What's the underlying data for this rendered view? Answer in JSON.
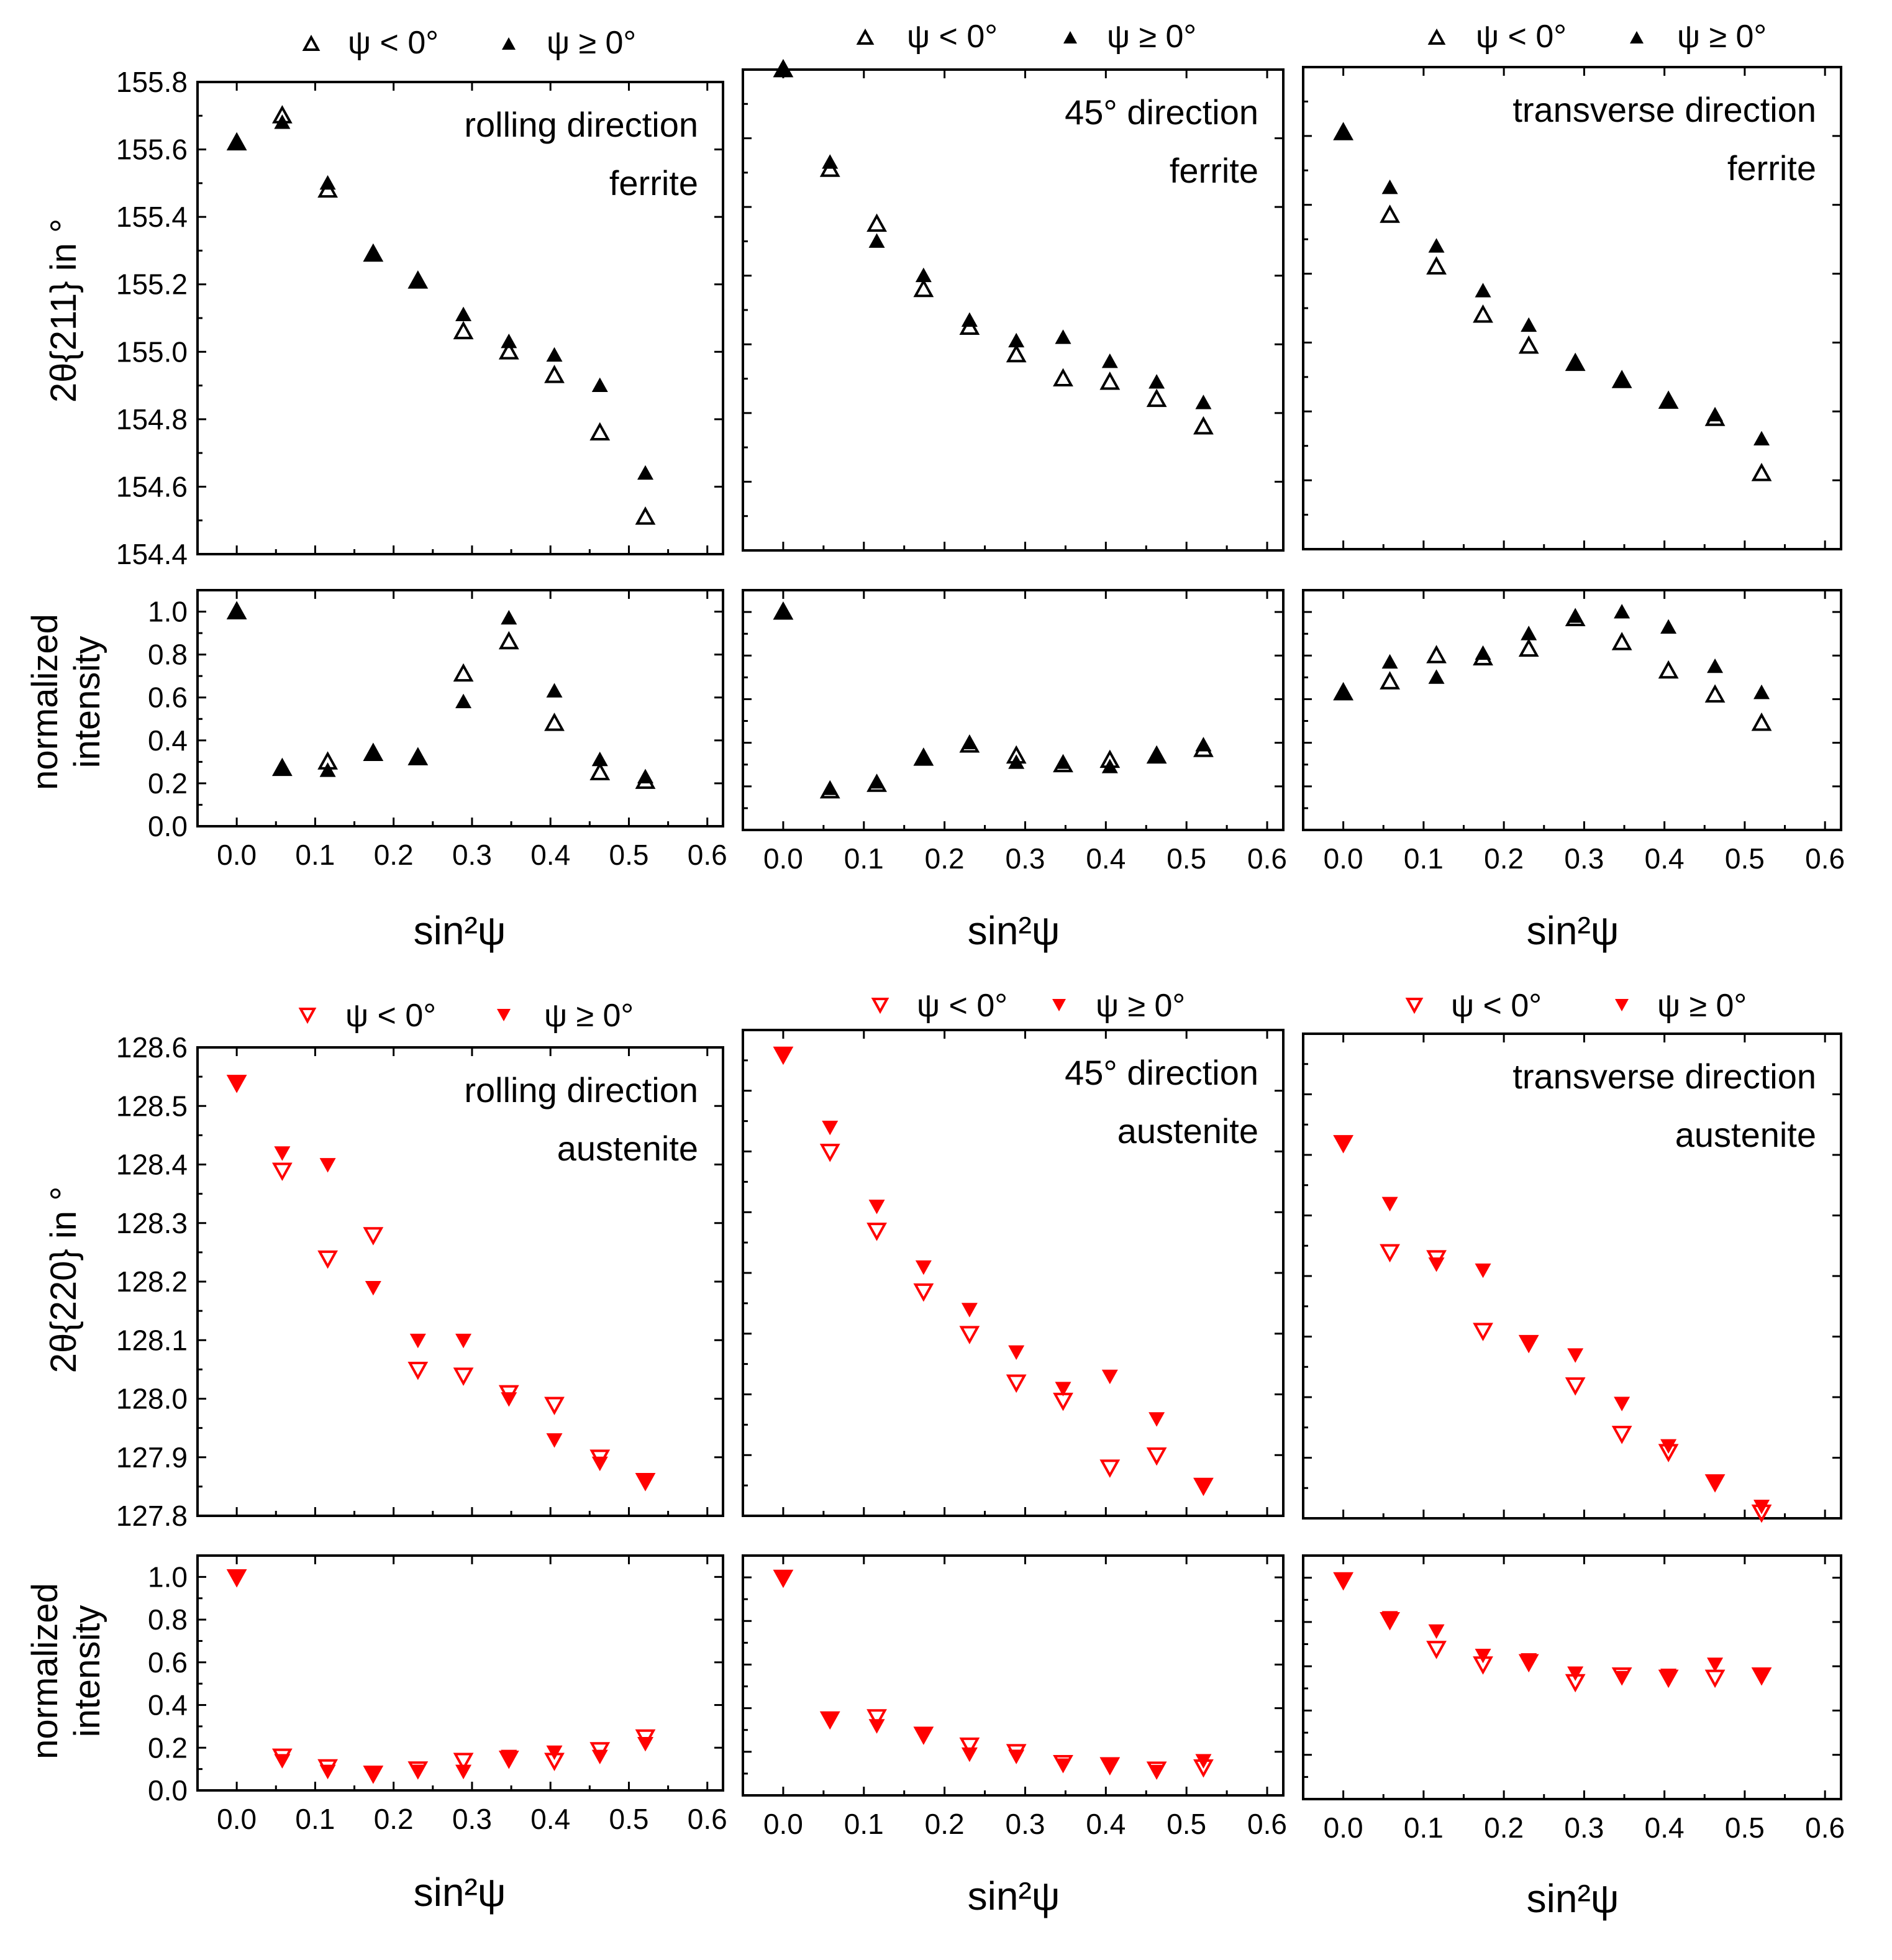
{
  "figure": {
    "legends": {
      "ferrite": {
        "neg": "ψ < 0°",
        "pos": "ψ ≥ 0°"
      },
      "austenite": {
        "neg": "ψ < 0°",
        "pos": "ψ ≥ 0°"
      }
    },
    "ylabels": {
      "ferrite_pos": "2θ{211} in °",
      "austenite_pos": "2θ{220} in °",
      "intensity_line1": "normalized",
      "intensity_line2": "intensity"
    },
    "xlabel": "sin²ψ",
    "colors": {
      "ferrite": "#000000",
      "austenite": "#ff0000"
    }
  },
  "chart_data": [
    {
      "id": "ferrite-rolling-pos",
      "type": "scatter",
      "phase": "ferrite",
      "kind": "position",
      "annotation": [
        "rolling direction",
        "ferrite"
      ],
      "ylim": [
        154.4,
        155.8
      ],
      "yticks": [
        "154.4",
        "154.6",
        "154.8",
        "155.0",
        "155.2",
        "155.4",
        "155.6",
        "155.8"
      ],
      "xlim": [
        -0.05,
        0.62
      ],
      "series": [
        {
          "name": "ψ < 0°",
          "x": [
            0.0,
            0.058,
            0.116,
            0.174,
            0.231,
            0.289,
            0.347,
            0.405,
            0.463,
            0.521
          ],
          "y": [
            155.62,
            155.7,
            155.48,
            155.29,
            155.21,
            155.06,
            155.0,
            154.93,
            154.76,
            154.51
          ]
        },
        {
          "name": "ψ ≥ 0°",
          "x": [
            0.0,
            0.058,
            0.116,
            0.174,
            0.231,
            0.289,
            0.347,
            0.405,
            0.463,
            0.521
          ],
          "y": [
            155.62,
            155.68,
            155.5,
            155.29,
            155.21,
            155.11,
            155.03,
            154.99,
            154.9,
            154.64
          ]
        }
      ]
    },
    {
      "id": "ferrite-45-pos",
      "type": "scatter",
      "phase": "ferrite",
      "kind": "position",
      "annotation": [
        "45° direction",
        "ferrite"
      ],
      "ylim": [
        154.4,
        155.8
      ],
      "yticks": [],
      "xlim": [
        -0.05,
        0.62
      ],
      "series": [
        {
          "name": "ψ < 0°",
          "x": [
            0.0,
            0.058,
            0.116,
            0.174,
            0.231,
            0.289,
            0.347,
            0.405,
            0.463,
            0.521
          ],
          "y": [
            155.8,
            155.51,
            155.35,
            155.16,
            155.05,
            154.97,
            154.9,
            154.89,
            154.84,
            154.76
          ]
        },
        {
          "name": "ψ ≥ 0°",
          "x": [
            0.0,
            0.058,
            0.116,
            0.174,
            0.231,
            0.289,
            0.347,
            0.405,
            0.463,
            0.521
          ],
          "y": [
            155.8,
            155.53,
            155.3,
            155.2,
            155.07,
            155.01,
            155.02,
            154.95,
            154.89,
            154.83
          ]
        }
      ]
    },
    {
      "id": "ferrite-transverse-pos",
      "type": "scatter",
      "phase": "ferrite",
      "kind": "position",
      "annotation": [
        "transverse direction",
        "ferrite"
      ],
      "ylim": [
        154.4,
        155.8
      ],
      "yticks": [],
      "xlim": [
        -0.05,
        0.62
      ],
      "series": [
        {
          "name": "ψ < 0°",
          "x": [
            0.0,
            0.058,
            0.116,
            0.174,
            0.231,
            0.289,
            0.347,
            0.405,
            0.463,
            0.521
          ],
          "y": [
            155.61,
            155.37,
            155.22,
            155.08,
            154.99,
            154.94,
            154.89,
            154.83,
            154.78,
            154.62
          ]
        },
        {
          "name": "ψ ≥ 0°",
          "x": [
            0.0,
            0.058,
            0.116,
            0.174,
            0.231,
            0.289,
            0.347,
            0.405,
            0.463,
            0.521
          ],
          "y": [
            155.61,
            155.45,
            155.28,
            155.15,
            155.05,
            154.94,
            154.89,
            154.83,
            154.79,
            154.72
          ]
        }
      ]
    },
    {
      "id": "ferrite-rolling-int",
      "type": "scatter",
      "phase": "ferrite",
      "kind": "intensity",
      "ylim": [
        0.0,
        1.1
      ],
      "yticks": [
        "0.0",
        "0.2",
        "0.4",
        "0.6",
        "0.8",
        "1.0"
      ],
      "xlim": [
        -0.05,
        0.62
      ],
      "xticks": [
        "0.0",
        "0.1",
        "0.2",
        "0.3",
        "0.4",
        "0.5",
        "0.6"
      ],
      "series": [
        {
          "name": "ψ < 0°",
          "x": [
            0.0,
            0.058,
            0.116,
            0.174,
            0.231,
            0.289,
            0.347,
            0.405,
            0.463,
            0.521
          ],
          "y": [
            1.0,
            0.27,
            0.3,
            0.34,
            0.32,
            0.71,
            0.86,
            0.48,
            0.25,
            0.21
          ]
        },
        {
          "name": "ψ ≥ 0°",
          "x": [
            0.0,
            0.058,
            0.116,
            0.174,
            0.231,
            0.289,
            0.347,
            0.405,
            0.463,
            0.521
          ],
          "y": [
            1.0,
            0.27,
            0.26,
            0.34,
            0.32,
            0.58,
            0.97,
            0.63,
            0.31,
            0.23
          ]
        }
      ]
    },
    {
      "id": "ferrite-45-int",
      "type": "scatter",
      "phase": "ferrite",
      "kind": "intensity",
      "ylim": [
        0.0,
        1.1
      ],
      "yticks": [],
      "xlim": [
        -0.05,
        0.62
      ],
      "xticks": [
        "0.0",
        "0.1",
        "0.2",
        "0.3",
        "0.4",
        "0.5",
        "0.6"
      ],
      "series": [
        {
          "name": "ψ < 0°",
          "x": [
            0.0,
            0.058,
            0.116,
            0.174,
            0.231,
            0.289,
            0.347,
            0.405,
            0.463,
            0.521
          ],
          "y": [
            1.0,
            0.18,
            0.21,
            0.33,
            0.39,
            0.34,
            0.3,
            0.32,
            0.34,
            0.37
          ]
        },
        {
          "name": "ψ ≥ 0°",
          "x": [
            0.0,
            0.058,
            0.116,
            0.174,
            0.231,
            0.289,
            0.347,
            0.405,
            0.463,
            0.521
          ],
          "y": [
            1.0,
            0.19,
            0.22,
            0.33,
            0.4,
            0.31,
            0.31,
            0.29,
            0.34,
            0.39
          ]
        }
      ]
    },
    {
      "id": "ferrite-transverse-int",
      "type": "scatter",
      "phase": "ferrite",
      "kind": "intensity",
      "ylim": [
        0.0,
        1.1
      ],
      "yticks": [],
      "xlim": [
        -0.05,
        0.62
      ],
      "xticks": [
        "0.0",
        "0.1",
        "0.2",
        "0.3",
        "0.4",
        "0.5",
        "0.6"
      ],
      "series": [
        {
          "name": "ψ < 0°",
          "x": [
            0.0,
            0.058,
            0.116,
            0.174,
            0.231,
            0.289,
            0.347,
            0.405,
            0.463,
            0.521
          ],
          "y": [
            0.63,
            0.68,
            0.8,
            0.79,
            0.83,
            0.97,
            0.86,
            0.73,
            0.62,
            0.49
          ]
        },
        {
          "name": "ψ ≥ 0°",
          "x": [
            0.0,
            0.058,
            0.116,
            0.174,
            0.231,
            0.289,
            0.347,
            0.405,
            0.463,
            0.521
          ],
          "y": [
            0.63,
            0.77,
            0.7,
            0.81,
            0.9,
            0.98,
            1.0,
            0.93,
            0.75,
            0.63
          ]
        }
      ]
    },
    {
      "id": "austenite-rolling-pos",
      "type": "scatter",
      "phase": "austenite",
      "kind": "position",
      "annotation": [
        "rolling direction",
        "austenite"
      ],
      "ylim": [
        127.8,
        128.6
      ],
      "yticks": [
        "127.8",
        "127.9",
        "128.0",
        "128.1",
        "128.2",
        "128.3",
        "128.4",
        "128.5",
        "128.6"
      ],
      "xlim": [
        -0.05,
        0.62
      ],
      "series": [
        {
          "name": "ψ < 0°",
          "x": [
            0.0,
            0.058,
            0.116,
            0.174,
            0.231,
            0.289,
            0.347,
            0.405,
            0.463,
            0.521
          ],
          "y": [
            128.54,
            128.39,
            128.24,
            128.28,
            128.05,
            128.04,
            128.01,
            127.99,
            127.9,
            127.86
          ]
        },
        {
          "name": "ψ ≥ 0°",
          "x": [
            0.0,
            0.058,
            0.116,
            0.174,
            0.231,
            0.289,
            0.347,
            0.405,
            0.463,
            0.521
          ],
          "y": [
            128.54,
            128.42,
            128.4,
            128.19,
            128.1,
            128.1,
            128.0,
            127.93,
            127.89,
            127.86
          ]
        }
      ]
    },
    {
      "id": "austenite-45-pos",
      "type": "scatter",
      "phase": "austenite",
      "kind": "position",
      "annotation": [
        "45° direction",
        "austenite"
      ],
      "ylim": [
        127.8,
        128.6
      ],
      "yticks": [],
      "xlim": [
        -0.05,
        0.62
      ],
      "series": [
        {
          "name": "ψ < 0°",
          "x": [
            0.0,
            0.058,
            0.116,
            0.174,
            0.231,
            0.289,
            0.347,
            0.405,
            0.463,
            0.521
          ],
          "y": [
            128.56,
            128.4,
            128.27,
            128.17,
            128.1,
            128.02,
            127.99,
            127.88,
            127.9,
            127.85
          ]
        },
        {
          "name": "ψ ≥ 0°",
          "x": [
            0.0,
            0.058,
            0.116,
            0.174,
            0.231,
            0.289,
            0.347,
            0.405,
            0.463,
            0.521
          ],
          "y": [
            128.56,
            128.44,
            128.31,
            128.21,
            128.14,
            128.07,
            128.01,
            128.03,
            127.96,
            127.85
          ]
        }
      ]
    },
    {
      "id": "austenite-transverse-pos",
      "type": "scatter",
      "phase": "austenite",
      "kind": "position",
      "annotation": [
        "transverse direction",
        "austenite"
      ],
      "ylim": [
        127.8,
        128.6
      ],
      "yticks": [],
      "xlim": [
        -0.05,
        0.62
      ],
      "series": [
        {
          "name": "ψ < 0°",
          "x": [
            0.0,
            0.058,
            0.116,
            0.174,
            0.231,
            0.289,
            0.347,
            0.405,
            0.463,
            0.521
          ],
          "y": [
            128.42,
            128.24,
            128.23,
            128.11,
            128.09,
            128.02,
            127.94,
            127.91,
            127.86,
            127.81
          ]
        },
        {
          "name": "ψ ≥ 0°",
          "x": [
            0.0,
            0.058,
            0.116,
            0.174,
            0.231,
            0.289,
            0.347,
            0.405,
            0.463,
            0.521
          ],
          "y": [
            128.42,
            128.32,
            128.22,
            128.21,
            128.09,
            128.07,
            127.99,
            127.92,
            127.86,
            127.82
          ]
        }
      ]
    },
    {
      "id": "austenite-rolling-int",
      "type": "scatter",
      "phase": "austenite",
      "kind": "intensity",
      "ylim": [
        0.0,
        1.1
      ],
      "yticks": [
        "0.0",
        "0.2",
        "0.4",
        "0.6",
        "0.8",
        "1.0"
      ],
      "xlim": [
        -0.05,
        0.62
      ],
      "xticks": [
        "0.0",
        "0.1",
        "0.2",
        "0.3",
        "0.4",
        "0.5",
        "0.6"
      ],
      "series": [
        {
          "name": "ψ < 0°",
          "x": [
            0.0,
            0.058,
            0.116,
            0.174,
            0.231,
            0.289,
            0.347,
            0.405,
            0.463,
            0.521
          ],
          "y": [
            1.0,
            0.16,
            0.11,
            0.08,
            0.1,
            0.14,
            0.15,
            0.14,
            0.19,
            0.25
          ]
        },
        {
          "name": "ψ ≥ 0°",
          "x": [
            0.0,
            0.058,
            0.116,
            0.174,
            0.231,
            0.289,
            0.347,
            0.405,
            0.463,
            0.521
          ],
          "y": [
            1.0,
            0.14,
            0.09,
            0.08,
            0.09,
            0.09,
            0.16,
            0.18,
            0.16,
            0.22
          ]
        }
      ]
    },
    {
      "id": "austenite-45-int",
      "type": "scatter",
      "phase": "austenite",
      "kind": "intensity",
      "ylim": [
        0.0,
        1.1
      ],
      "yticks": [],
      "xlim": [
        -0.05,
        0.62
      ],
      "xticks": [
        "0.0",
        "0.1",
        "0.2",
        "0.3",
        "0.4",
        "0.5",
        "0.6"
      ],
      "series": [
        {
          "name": "ψ < 0°",
          "x": [
            0.0,
            0.058,
            0.116,
            0.174,
            0.231,
            0.289,
            0.347,
            0.405,
            0.463,
            0.521
          ],
          "y": [
            1.0,
            0.35,
            0.36,
            0.28,
            0.23,
            0.2,
            0.15,
            0.14,
            0.12,
            0.13
          ]
        },
        {
          "name": "ψ ≥ 0°",
          "x": [
            0.0,
            0.058,
            0.116,
            0.174,
            0.231,
            0.289,
            0.347,
            0.405,
            0.463,
            0.521
          ],
          "y": [
            1.0,
            0.35,
            0.32,
            0.28,
            0.19,
            0.18,
            0.14,
            0.14,
            0.11,
            0.16
          ]
        }
      ]
    },
    {
      "id": "austenite-transverse-int",
      "type": "scatter",
      "phase": "austenite",
      "kind": "intensity",
      "ylim": [
        0.0,
        1.1
      ],
      "yticks": [],
      "xlim": [
        -0.05,
        0.62
      ],
      "xticks": [
        "0.0",
        "0.1",
        "0.2",
        "0.3",
        "0.4",
        "0.5",
        "0.6"
      ],
      "series": [
        {
          "name": "ψ < 0°",
          "x": [
            0.0,
            0.058,
            0.116,
            0.174,
            0.231,
            0.289,
            0.347,
            0.405,
            0.463,
            0.521
          ],
          "y": [
            0.99,
            0.81,
            0.68,
            0.61,
            0.62,
            0.53,
            0.56,
            0.55,
            0.55,
            0.56
          ]
        },
        {
          "name": "ψ ≥ 0°",
          "x": [
            0.0,
            0.058,
            0.116,
            0.174,
            0.231,
            0.289,
            0.347,
            0.405,
            0.463,
            0.521
          ],
          "y": [
            0.99,
            0.82,
            0.76,
            0.65,
            0.63,
            0.57,
            0.55,
            0.56,
            0.61,
            0.56
          ]
        }
      ]
    }
  ]
}
